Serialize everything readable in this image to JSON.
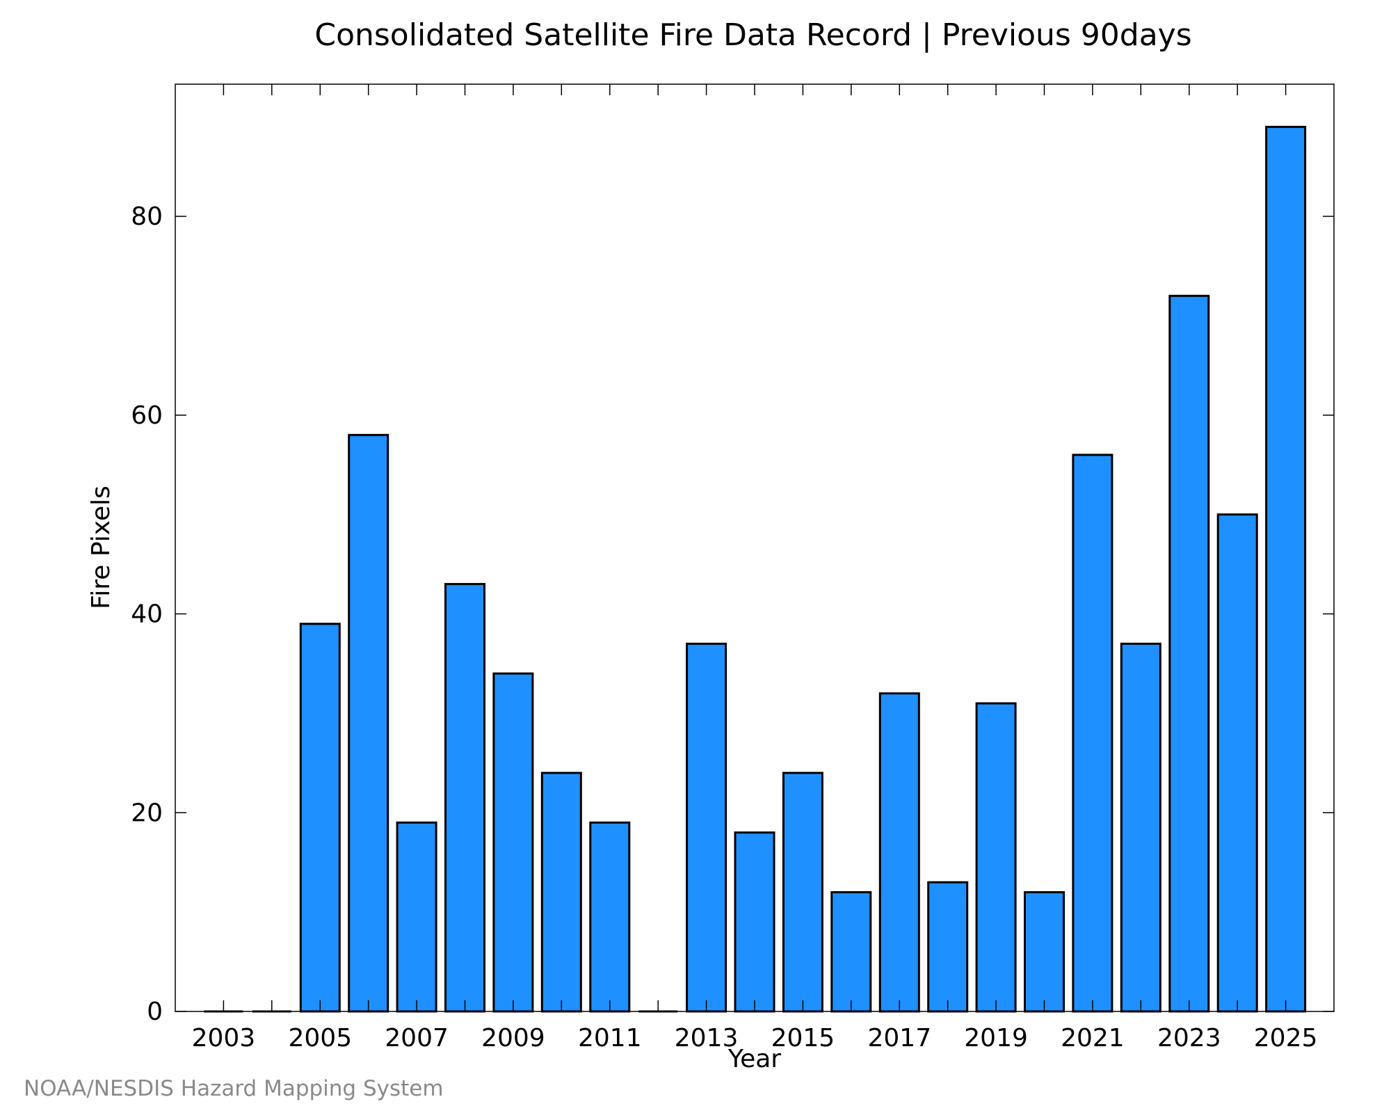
{
  "colors": {
    "bar_fill": "#1e90ff",
    "bar_stroke": "#000000",
    "axis": "#000000",
    "credit": "#8a8a8a"
  },
  "credit": "NOAA/NESDIS Hazard Mapping System",
  "chart_data": {
    "type": "bar",
    "title": "Consolidated Satellite Fire Data Record | Previous 90days",
    "xlabel": "Year",
    "ylabel": "Fire Pixels",
    "categories": [
      2003,
      2004,
      2005,
      2006,
      2007,
      2008,
      2009,
      2010,
      2011,
      2012,
      2013,
      2014,
      2015,
      2016,
      2017,
      2018,
      2019,
      2020,
      2021,
      2022,
      2023,
      2024,
      2025
    ],
    "values": [
      0,
      0,
      39,
      58,
      19,
      43,
      34,
      24,
      19,
      0,
      37,
      18,
      24,
      12,
      32,
      13,
      31,
      12,
      56,
      37,
      72,
      50,
      89
    ],
    "xticks": [
      "2003",
      "2005",
      "2007",
      "2009",
      "2011",
      "2013",
      "2015",
      "2017",
      "2019",
      "2021",
      "2023",
      "2025"
    ],
    "yticks": [
      "0",
      "20",
      "40",
      "60",
      "80"
    ],
    "ylim": [
      0,
      93.3
    ],
    "xlim": [
      2002.0,
      2026.0
    ],
    "grid": false,
    "legend": "none"
  }
}
